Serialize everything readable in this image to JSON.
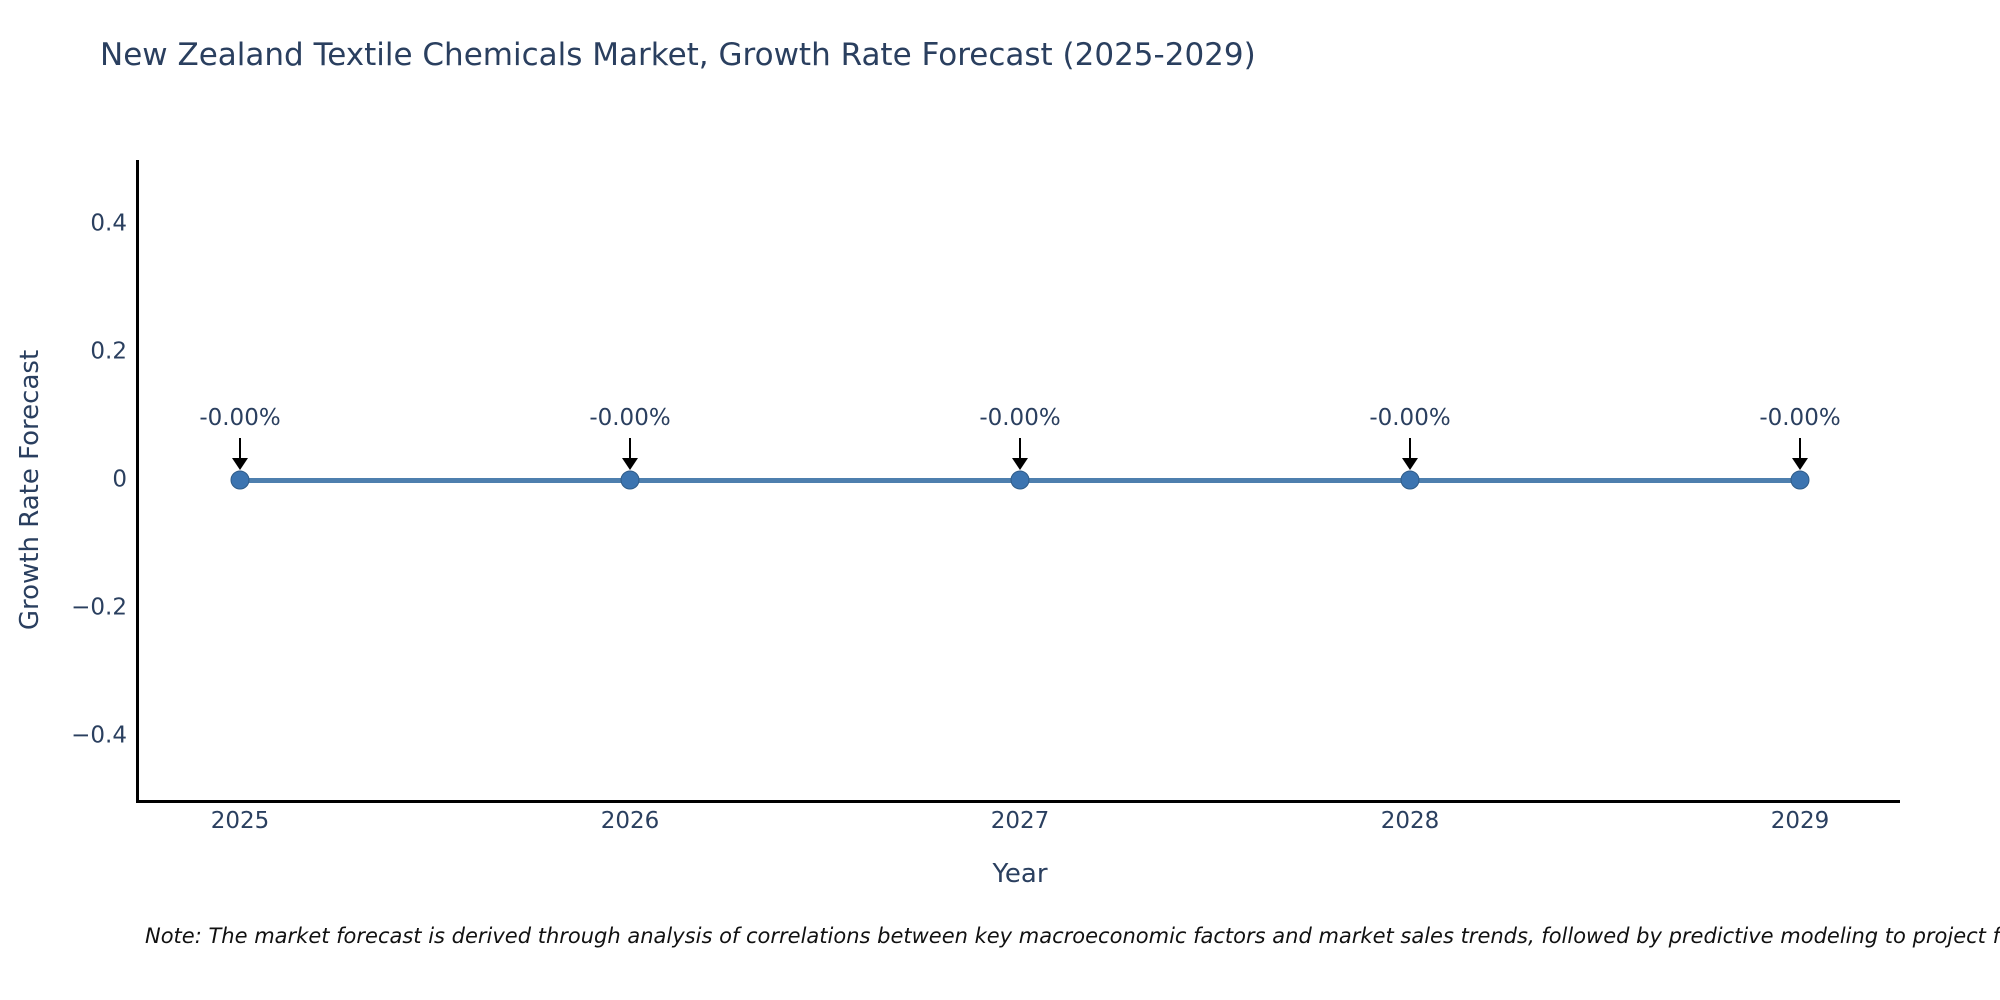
{
  "title": "New Zealand Textile Chemicals Market, Growth Rate Forecast (2025-2029)",
  "note": "Note: The market forecast is derived through analysis of correlations between key macroeconomic factors and market sales trends, followed by predictive modeling to project future sales.",
  "chart_data": {
    "type": "line",
    "title": "New Zealand Textile Chemicals Market, Growth Rate Forecast (2025-2029)",
    "xlabel": "Year",
    "ylabel": "Growth Rate Forecast",
    "x": [
      2025,
      2026,
      2027,
      2028,
      2029
    ],
    "series": [
      {
        "name": "Growth Rate Forecast",
        "values": [
          0,
          0,
          0,
          0,
          0
        ],
        "point_labels": [
          "-0.00%",
          "-0.00%",
          "-0.00%",
          "-0.00%",
          "-0.00%"
        ]
      }
    ],
    "xtick_labels": [
      "2025",
      "2026",
      "2027",
      "2028",
      "2029"
    ],
    "ytick_labels": [
      "0.4",
      "0.2",
      "0",
      "−0.2",
      "−0.4"
    ],
    "ytick_values": [
      0.4,
      0.2,
      0,
      -0.2,
      -0.4
    ],
    "ylim": [
      -0.5,
      0.5
    ],
    "grid": false,
    "legend": "none",
    "colors": {
      "line": "#4e7fae",
      "marker_fill": "#3c74b0",
      "marker_border": "#2e5b88",
      "axis_line": "#000000",
      "text": "#2a3f5f",
      "annotation_arrow": "#000000",
      "background": "#ffffff"
    }
  }
}
